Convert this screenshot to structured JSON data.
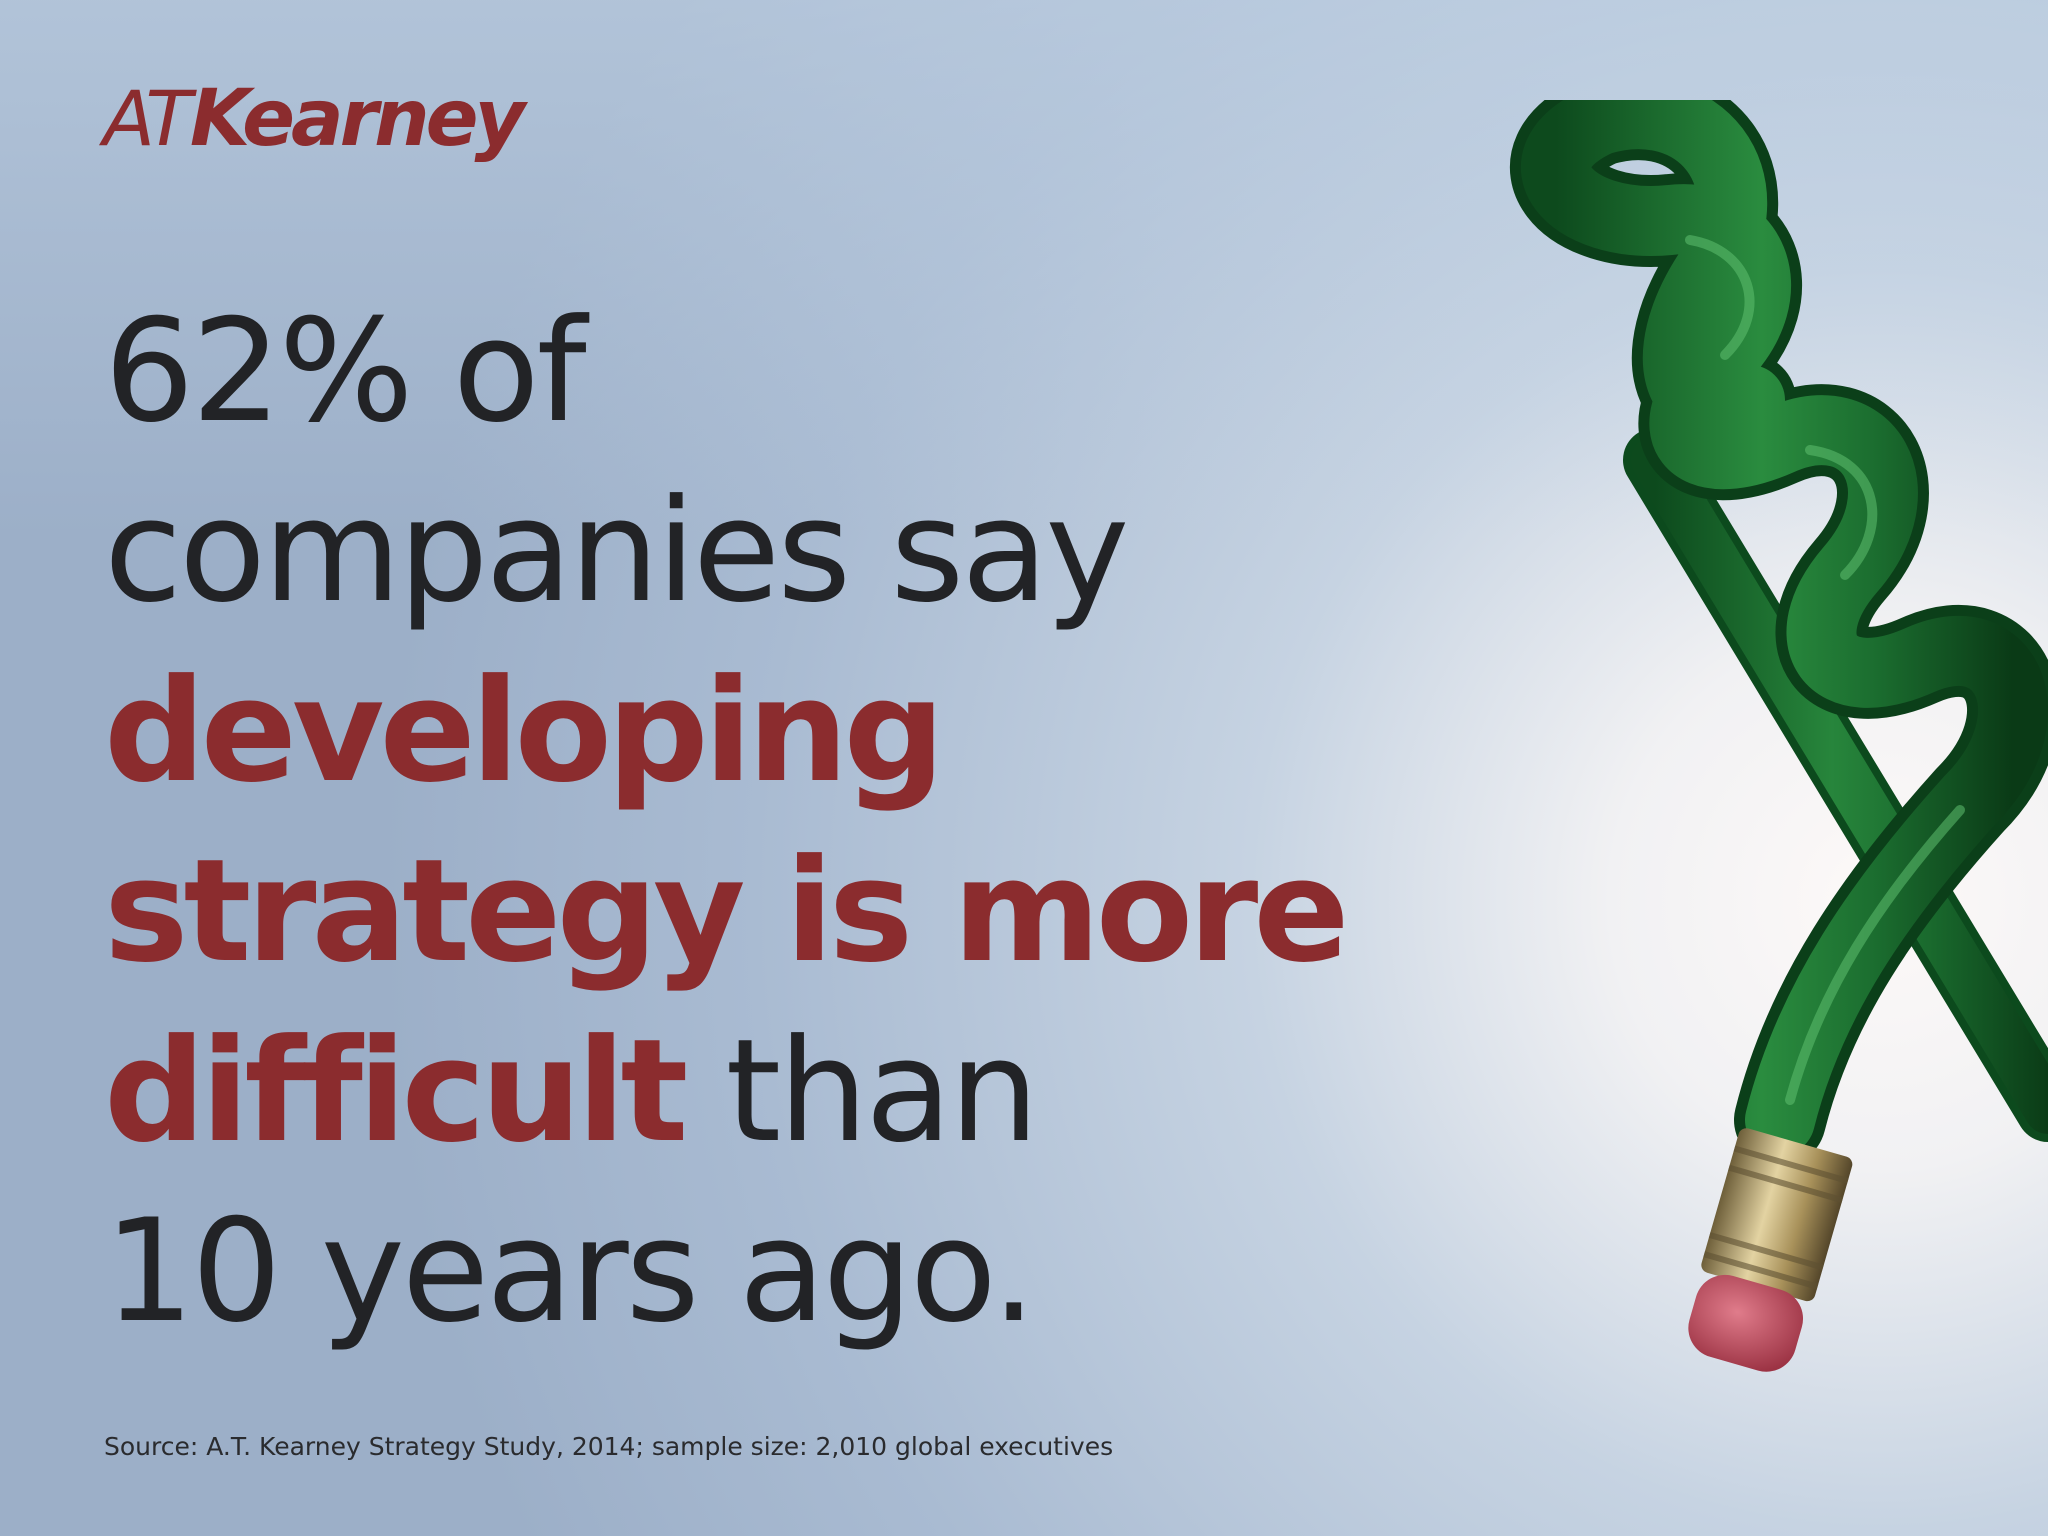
{
  "brand": {
    "logo_light": "AT",
    "logo_bold": "Kearney",
    "brand_color": "#8b2c2e"
  },
  "headline": {
    "line1": "62% of",
    "line2": "companies say",
    "line3": "developing",
    "line4": "strategy is more",
    "line5_emph": "difficult",
    "line5_rest": " than",
    "line6": "10 years ago.",
    "text_color": "#262628",
    "emph_color": "#8b2c2e"
  },
  "source": {
    "text": "Source: A.T. Kearney Strategy Study, 2014; sample size: 2,010 global executives"
  },
  "illustration": {
    "icon": "knotted-pencil-icon",
    "pencil_color": "#1f7a33",
    "eraser_color": "#c9596a",
    "ferrule_color": "#b8a472"
  },
  "background": {
    "left_color": "#9fb3cc",
    "right_color": "#fbf7f6"
  }
}
